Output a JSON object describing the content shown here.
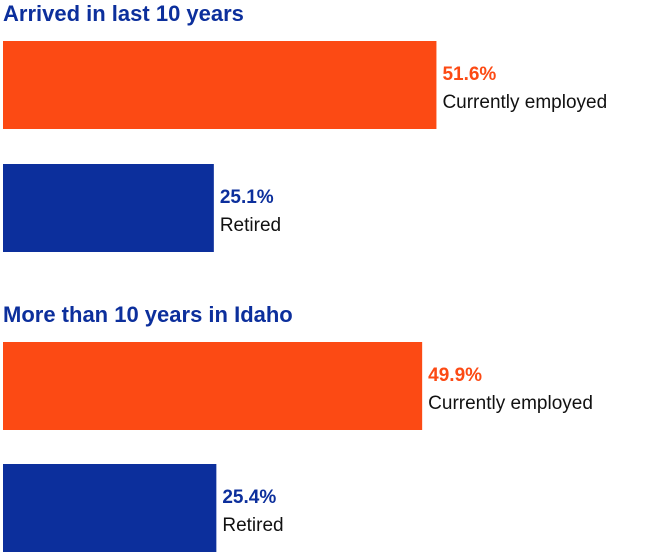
{
  "colors": {
    "employed": "#fc4a14",
    "retired": "#0c2f9c",
    "title": "#0c2f9c"
  },
  "chart_data": [
    {
      "type": "bar",
      "orientation": "horizontal",
      "title": "Arrived in last 10 years",
      "xlim": [
        0,
        60
      ],
      "grid": false,
      "categories": [
        "Currently employed",
        "Retired"
      ],
      "values": [
        51.6,
        25.1
      ],
      "value_labels": [
        "51.6%",
        "25.1%"
      ]
    },
    {
      "type": "bar",
      "orientation": "horizontal",
      "title": "More than 10 years in Idaho",
      "xlim": [
        0,
        60
      ],
      "grid": false,
      "categories": [
        "Currently employed",
        "Retired"
      ],
      "values": [
        49.9,
        25.4
      ],
      "value_labels": [
        "49.9%",
        "25.4%"
      ]
    }
  ]
}
